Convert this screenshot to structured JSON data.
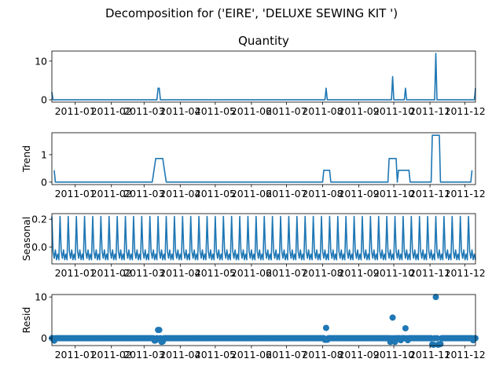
{
  "figure": {
    "suptitle": "Decomposition for ('EIRE', 'DELUXE SEWING KIT ')",
    "line_color": "#1f77b4"
  },
  "chart_data": [
    {
      "type": "line",
      "title": "Quantity",
      "ylabel": "",
      "x_start": "2010-12-12",
      "x_step_days": 1,
      "xlim": [
        "2010-12-12",
        "2011-12-10"
      ],
      "ylim": [
        -0.6,
        12.6
      ],
      "yticks": [
        0,
        10
      ],
      "xticks": [
        "2011-01",
        "2011-02",
        "2011-03",
        "2011-04",
        "2011-05",
        "2011-06",
        "2011-07",
        "2011-08",
        "2011-09",
        "2011-10",
        "2011-11",
        "2011-12"
      ],
      "grid": false,
      "nonzero_points": [
        {
          "x": "2010-12-12",
          "y": 2
        },
        {
          "x": "2011-03-13",
          "y": 3
        },
        {
          "x": "2011-03-14",
          "y": 3
        },
        {
          "x": "2011-08-04",
          "y": 3
        },
        {
          "x": "2011-09-30",
          "y": 6
        },
        {
          "x": "2011-10-11",
          "y": 3
        },
        {
          "x": "2011-11-06",
          "y": 12
        },
        {
          "x": "2011-12-10",
          "y": 3
        }
      ]
    },
    {
      "type": "line",
      "title": "",
      "ylabel": "Trend",
      "xlim": [
        "2010-12-12",
        "2011-12-10"
      ],
      "ylim": [
        -0.09,
        1.8
      ],
      "yticks": [
        0,
        1
      ],
      "xticks": [
        "2011-01",
        "2011-02",
        "2011-03",
        "2011-04",
        "2011-05",
        "2011-06",
        "2011-07",
        "2011-08",
        "2011-09",
        "2011-10",
        "2011-11",
        "2011-12"
      ],
      "grid": false,
      "points": [
        {
          "x": "2010-12-14",
          "y": 0.43
        },
        {
          "x": "2010-12-15",
          "y": 0
        },
        {
          "x": "2011-03-08",
          "y": 0
        },
        {
          "x": "2011-03-11",
          "y": 0.86
        },
        {
          "x": "2011-03-17",
          "y": 0.86
        },
        {
          "x": "2011-03-20",
          "y": 0
        },
        {
          "x": "2011-08-01",
          "y": 0
        },
        {
          "x": "2011-08-02",
          "y": 0.43
        },
        {
          "x": "2011-08-07",
          "y": 0.43
        },
        {
          "x": "2011-08-08",
          "y": 0
        },
        {
          "x": "2011-09-26",
          "y": 0
        },
        {
          "x": "2011-09-27",
          "y": 0.86
        },
        {
          "x": "2011-10-03",
          "y": 0.86
        },
        {
          "x": "2011-10-04",
          "y": 0
        },
        {
          "x": "2011-10-05",
          "y": 0.43
        },
        {
          "x": "2011-10-14",
          "y": 0.43
        },
        {
          "x": "2011-10-15",
          "y": 0
        },
        {
          "x": "2011-11-02",
          "y": 0
        },
        {
          "x": "2011-11-03",
          "y": 1.71
        },
        {
          "x": "2011-11-09",
          "y": 1.71
        },
        {
          "x": "2011-11-10",
          "y": 0
        },
        {
          "x": "2011-12-06",
          "y": 0
        },
        {
          "x": "2011-12-07",
          "y": 0.43
        }
      ]
    },
    {
      "type": "line",
      "title": "",
      "ylabel": "Seasonal",
      "xlim": [
        "2010-12-12",
        "2011-12-10"
      ],
      "ylim": [
        -0.12,
        0.24
      ],
      "yticks": [
        0.0,
        0.2
      ],
      "ytick_labels": [
        "0.0",
        "0.2"
      ],
      "xticks": [
        "2011-01",
        "2011-02",
        "2011-03",
        "2011-04",
        "2011-05",
        "2011-06",
        "2011-07",
        "2011-08",
        "2011-09",
        "2011-10",
        "2011-11",
        "2011-12"
      ],
      "grid": false,
      "period_days": 7,
      "pattern": [
        0.22,
        -0.03,
        -0.08,
        -0.02,
        -0.09,
        -0.05,
        -0.09
      ]
    },
    {
      "type": "scatter",
      "title": "",
      "ylabel": "Resid",
      "xlim": [
        "2010-12-12",
        "2011-12-10"
      ],
      "ylim": [
        -1.8,
        10.6
      ],
      "yticks": [
        0,
        10
      ],
      "xticks": [
        "2011-01",
        "2011-02",
        "2011-03",
        "2011-04",
        "2011-05",
        "2011-06",
        "2011-07",
        "2011-08",
        "2011-09",
        "2011-10",
        "2011-11",
        "2011-12"
      ],
      "grid": false,
      "points": [
        {
          "x": "2010-12-14",
          "y": -0.6
        },
        {
          "x": "2011-03-10",
          "y": -0.6
        },
        {
          "x": "2011-03-11",
          "y": -0.5
        },
        {
          "x": "2011-03-13",
          "y": 2.0
        },
        {
          "x": "2011-03-14",
          "y": 2.0
        },
        {
          "x": "2011-03-16",
          "y": -0.9
        },
        {
          "x": "2011-03-17",
          "y": -0.8
        },
        {
          "x": "2011-08-03",
          "y": -0.4
        },
        {
          "x": "2011-08-04",
          "y": 2.5
        },
        {
          "x": "2011-08-05",
          "y": -0.4
        },
        {
          "x": "2011-09-28",
          "y": -0.9
        },
        {
          "x": "2011-09-30",
          "y": 5.0
        },
        {
          "x": "2011-10-02",
          "y": -0.9
        },
        {
          "x": "2011-10-07",
          "y": -0.5
        },
        {
          "x": "2011-10-11",
          "y": 2.4
        },
        {
          "x": "2011-10-13",
          "y": -0.5
        },
        {
          "x": "2011-11-03",
          "y": -1.5
        },
        {
          "x": "2011-11-04",
          "y": -1.6
        },
        {
          "x": "2011-11-06",
          "y": 10.0
        },
        {
          "x": "2011-11-08",
          "y": -1.6
        },
        {
          "x": "2011-11-09",
          "y": -1.5
        },
        {
          "x": "2011-11-10",
          "y": -1.4
        },
        {
          "x": "2011-12-08",
          "y": -0.5
        },
        {
          "x": "2011-12-10",
          "y": 0.0
        }
      ],
      "default_y": 0.0
    }
  ]
}
